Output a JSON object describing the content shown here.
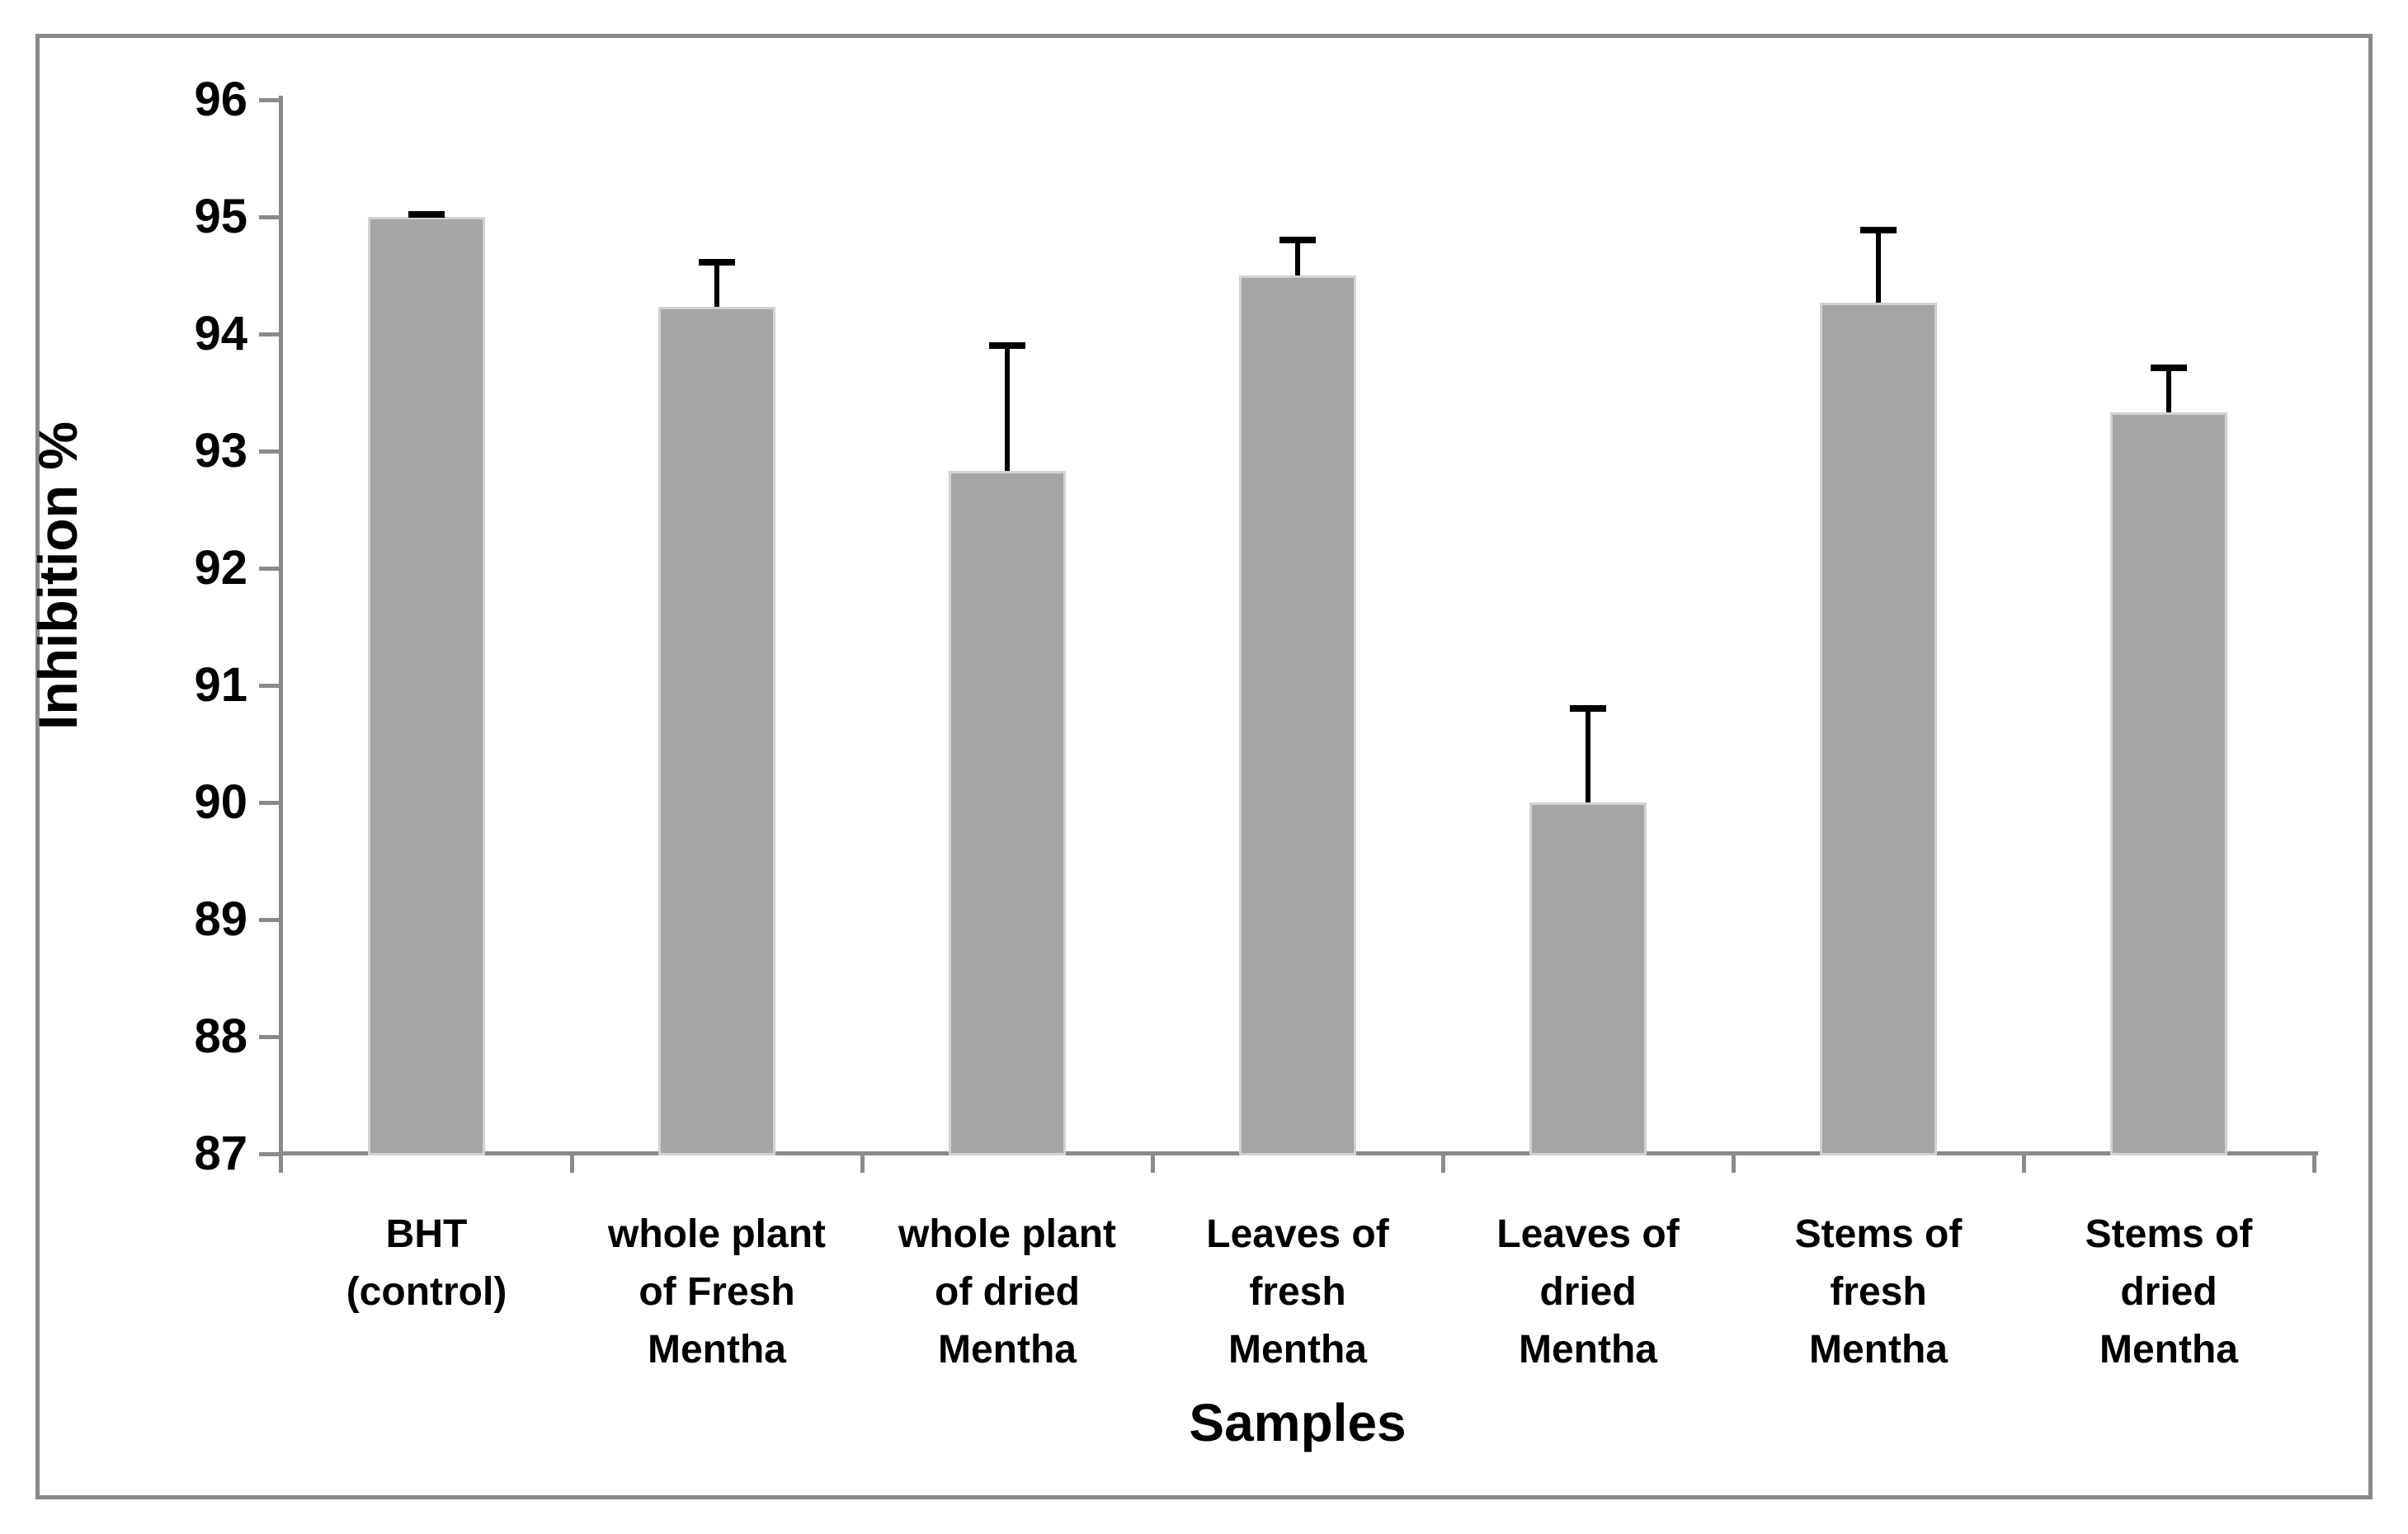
{
  "chart_data": {
    "type": "bar",
    "title": "",
    "xlabel": "Samples",
    "ylabel": "Inhibition %",
    "categories": [
      "BHT (control)",
      "whole plant of Fresh Mentha",
      "whole plant of dried Mentha",
      "Leaves of fresh Mentha",
      "Leaves of dried Mentha",
      "Stems of fresh Mentha",
      "Stems of dried Mentha"
    ],
    "category_label_lines": [
      [
        "BHT",
        "(control)"
      ],
      [
        "whole plant",
        "of Fresh",
        "Mentha"
      ],
      [
        "whole plant",
        "of dried",
        "Mentha"
      ],
      [
        "Leaves of",
        "fresh",
        "Mentha"
      ],
      [
        "Leaves of",
        "dried",
        "Mentha"
      ],
      [
        "Stems of",
        "fresh",
        "Mentha"
      ],
      [
        "Stems of",
        "dried",
        "Mentha"
      ]
    ],
    "series": [
      {
        "name": "Inhibition %",
        "values": [
          95.0,
          94.23,
          92.83,
          94.5,
          90.0,
          94.27,
          93.33
        ],
        "error_up": [
          0.02,
          0.38,
          1.07,
          0.3,
          0.8,
          0.62,
          0.38
        ]
      }
    ],
    "ylim": [
      87,
      96
    ],
    "ytick_step": 1,
    "ytick_labels": [
      "87",
      "88",
      "89",
      "90",
      "91",
      "92",
      "93",
      "94",
      "95",
      "96"
    ],
    "grid": false,
    "legend_position": "none",
    "colors": {
      "bar_fill": "#A5A5A5",
      "bar_border": "#D2D2D2",
      "error_bar": "#000000",
      "axis": "#8A8A8A",
      "figure_border": "#898989",
      "text": "#000000",
      "background": "#FFFFFF"
    }
  }
}
